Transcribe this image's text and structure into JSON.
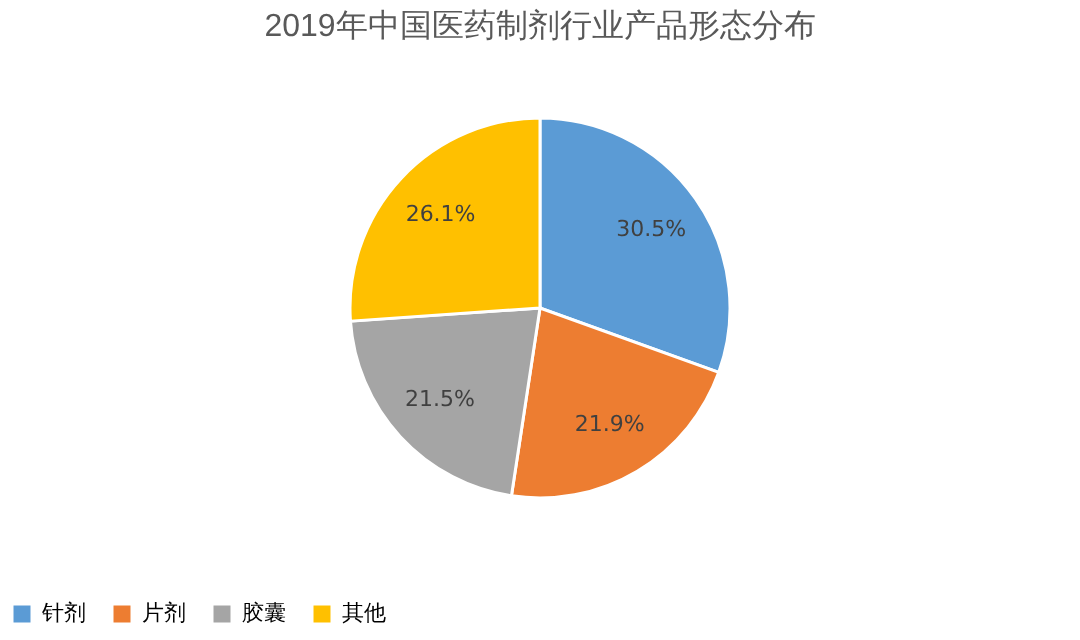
{
  "chart_data": {
    "type": "pie",
    "title": "2019年中国医药制剂行业产品形态分布",
    "categories": [
      "针剂",
      "片剂",
      "胶囊",
      "其他"
    ],
    "values": [
      30.5,
      21.9,
      21.5,
      26.1
    ],
    "colors": [
      "#5b9bd5",
      "#ed7d31",
      "#a5a5a5",
      "#ffc000"
    ],
    "value_labels": [
      "30.5%",
      "21.9%",
      "21.5%",
      "26.1%"
    ],
    "legend": "bottom"
  }
}
